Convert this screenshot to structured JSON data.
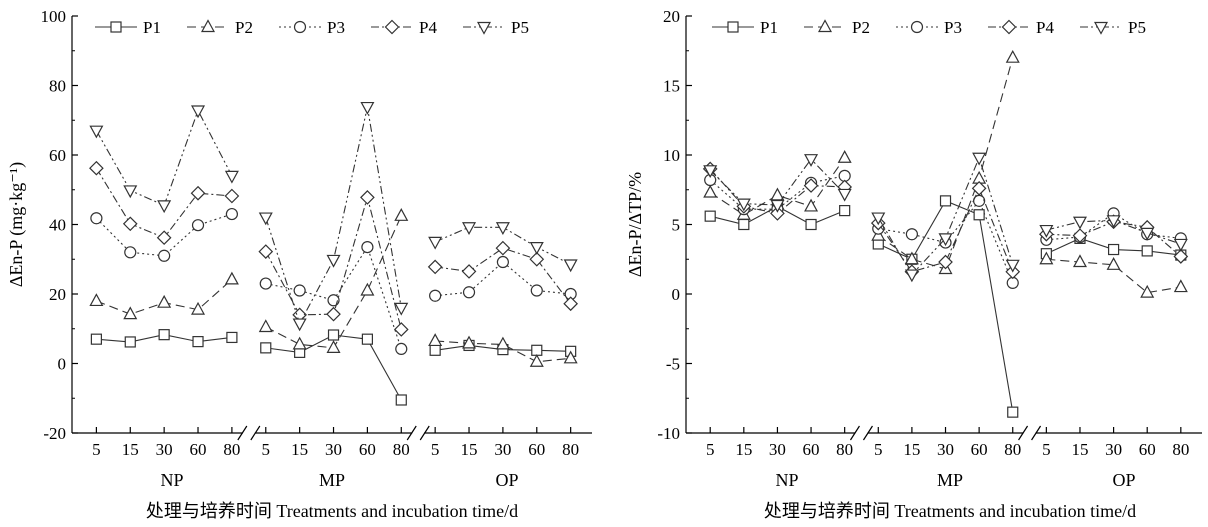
{
  "figure": {
    "background": "#ffffff",
    "line_color": "#333333"
  },
  "series_styles": [
    {
      "name": "P1",
      "marker": "square",
      "dash": "solid"
    },
    {
      "name": "P2",
      "marker": "triangle-up",
      "dash": "dashed"
    },
    {
      "name": "P3",
      "marker": "circle",
      "dash": "dotted"
    },
    {
      "name": "P4",
      "marker": "diamond",
      "dash": "dash-dot"
    },
    {
      "name": "P5",
      "marker": "triangle-down",
      "dash": "dash-dot-dot"
    }
  ],
  "chart_data": [
    {
      "type": "line",
      "title": "",
      "ylabel": "ΔEn-P (mg·kg⁻¹)",
      "xlabel": "处理与培养时间 Treatments and incubation time/d",
      "ylim": [
        -20,
        100
      ],
      "yticks": [
        "-20",
        "0",
        "20",
        "40",
        "60",
        "80",
        "100"
      ],
      "ytick_values": [
        -20,
        0,
        20,
        40,
        60,
        80,
        100
      ],
      "x_tick_labels": [
        "5",
        "15",
        "30",
        "60",
        "80"
      ],
      "groups": [
        "NP",
        "MP",
        "OP"
      ],
      "axis_break_marker": "//",
      "legend_position": "top-left",
      "grid": false,
      "series": [
        {
          "name": "P1",
          "values": [
            [
              7.0,
              6.2,
              8.3,
              6.3,
              7.5
            ],
            [
              4.5,
              3.2,
              8.2,
              7.0,
              -10.5
            ],
            [
              3.8,
              5.2,
              4.0,
              3.8,
              3.5
            ]
          ]
        },
        {
          "name": "P2",
          "values": [
            [
              18.0,
              14.2,
              17.5,
              15.5,
              24.2
            ],
            [
              10.5,
              5.5,
              4.5,
              21.0,
              42.5
            ],
            [
              6.5,
              5.8,
              5.5,
              0.5,
              1.5
            ]
          ]
        },
        {
          "name": "P3",
          "values": [
            [
              41.8,
              32.0,
              31.0,
              39.8,
              43.0
            ],
            [
              23.0,
              21.0,
              18.2,
              33.5,
              4.2
            ],
            [
              19.5,
              20.5,
              29.2,
              21.0,
              20.0
            ]
          ]
        },
        {
          "name": "P4",
          "values": [
            [
              56.2,
              40.2,
              36.2,
              49.0,
              48.2
            ],
            [
              32.2,
              14.0,
              14.2,
              47.8,
              9.8
            ],
            [
              27.8,
              26.5,
              33.2,
              30.0,
              17.2
            ]
          ]
        },
        {
          "name": "P5",
          "values": [
            [
              67.0,
              49.8,
              45.5,
              72.8,
              54.0
            ],
            [
              42.0,
              11.5,
              29.8,
              73.8,
              16.0
            ],
            [
              35.0,
              39.2,
              39.2,
              33.5,
              28.5
            ]
          ]
        }
      ]
    },
    {
      "type": "line",
      "title": "",
      "ylabel": "ΔEn-P/ΔTP/%",
      "xlabel": "处理与培养时间 Treatments and incubation time/d",
      "ylim": [
        -10,
        20
      ],
      "yticks": [
        "-10",
        "-5",
        "0",
        "5",
        "10",
        "15",
        "20"
      ],
      "ytick_values": [
        -10,
        -5,
        0,
        5,
        10,
        15,
        20
      ],
      "x_tick_labels": [
        "5",
        "15",
        "30",
        "60",
        "80"
      ],
      "groups": [
        "NP",
        "MP",
        "OP"
      ],
      "axis_break_marker": "//",
      "legend_position": "top-left",
      "grid": false,
      "series": [
        {
          "name": "P1",
          "values": [
            [
              5.6,
              5.0,
              6.3,
              5.0,
              6.0
            ],
            [
              3.6,
              2.5,
              6.7,
              5.7,
              -8.5
            ],
            [
              2.9,
              4.0,
              3.2,
              3.1,
              2.8
            ]
          ]
        },
        {
          "name": "P2",
          "values": [
            [
              7.3,
              5.7,
              7.1,
              6.3,
              9.8
            ],
            [
              4.2,
              2.5,
              1.8,
              8.3,
              17.0
            ],
            [
              2.5,
              2.3,
              2.1,
              0.1,
              0.5
            ]
          ]
        },
        {
          "name": "P3",
          "values": [
            [
              8.2,
              6.1,
              6.1,
              8.0,
              8.5
            ],
            [
              4.7,
              4.3,
              3.7,
              6.7,
              0.8
            ],
            [
              3.9,
              4.1,
              5.8,
              4.3,
              4.0
            ]
          ]
        },
        {
          "name": "P4",
          "values": [
            [
              9.0,
              6.3,
              5.8,
              7.8,
              7.7
            ],
            [
              5.1,
              1.6,
              2.3,
              7.6,
              1.6
            ],
            [
              4.3,
              4.2,
              5.2,
              4.8,
              2.7
            ]
          ]
        },
        {
          "name": "P5",
          "values": [
            [
              8.9,
              6.5,
              6.4,
              9.7,
              7.2
            ],
            [
              5.5,
              1.4,
              4.0,
              9.8,
              2.1
            ],
            [
              4.6,
              5.2,
              5.3,
              4.4,
              3.6
            ]
          ]
        }
      ]
    }
  ]
}
